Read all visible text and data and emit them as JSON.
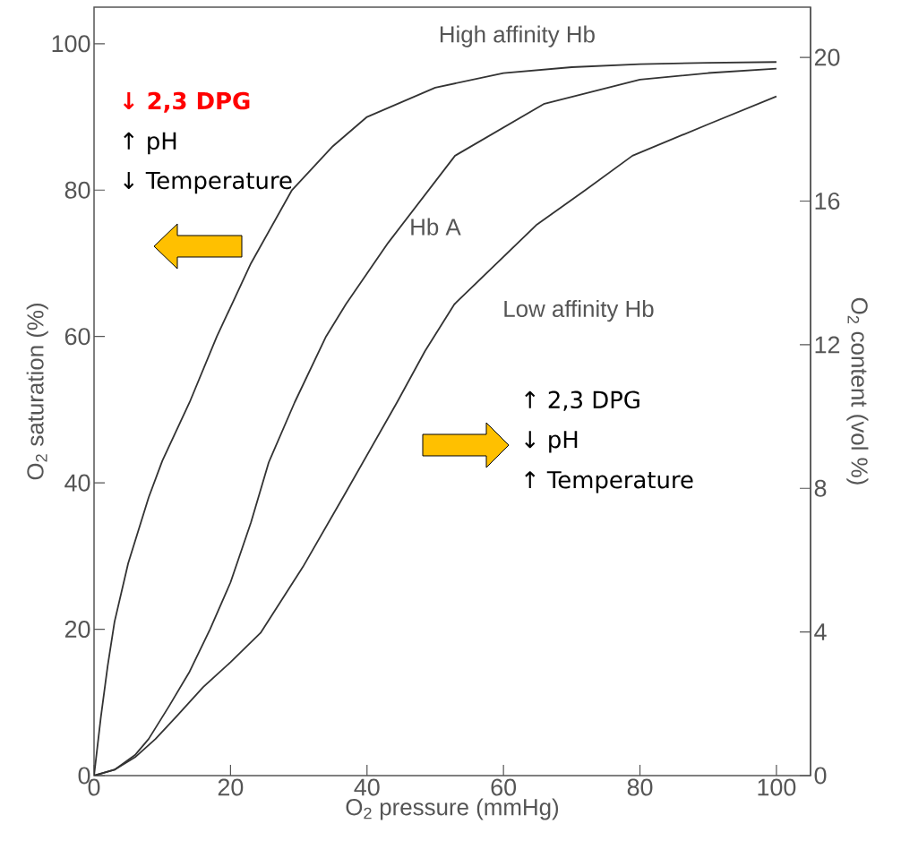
{
  "chart_data": {
    "type": "line",
    "xlabel": "O$_{2}$ pressure (mmHg)",
    "ylabel": "O$_{2}$ saturation (%)",
    "y2label": "O$_{2}$ content (vol %)",
    "xlim": [
      0,
      105
    ],
    "ylim": [
      0,
      105
    ],
    "y2lim": [
      0,
      21.4
    ],
    "xticks": [
      0,
      20,
      40,
      60,
      80,
      100
    ],
    "yticks": [
      0,
      20,
      40,
      60,
      80,
      100
    ],
    "y2ticks": [
      0,
      4,
      8,
      12,
      16,
      20
    ],
    "series": [
      {
        "name": "High affinity Hb",
        "color": "#333333",
        "x": [
          0,
          1,
          2,
          3,
          5,
          8,
          10,
          14,
          18,
          23,
          29,
          35,
          40,
          50,
          60,
          70,
          80,
          90,
          100
        ],
        "values": [
          0,
          8,
          15,
          21,
          29,
          38,
          43,
          51,
          60,
          70,
          80,
          86,
          90,
          94,
          96,
          96.8,
          97.2,
          97.4,
          97.5
        ]
      },
      {
        "name": "Hb A",
        "color": "#333333",
        "x": [
          0,
          3,
          6,
          8,
          11,
          14,
          17,
          20,
          23,
          25.6,
          29.4,
          34,
          36.9,
          43.1,
          52.9,
          66,
          80,
          90,
          100
        ],
        "values": [
          0,
          0.8,
          2.8,
          5,
          9.5,
          14.2,
          20,
          26.4,
          34.6,
          42.8,
          51,
          60,
          64.4,
          72.8,
          84.7,
          91.8,
          95.1,
          96,
          96.6
        ]
      },
      {
        "name": "Low affinity Hb",
        "color": "#333333",
        "x": [
          0,
          3,
          6,
          9,
          12,
          16,
          20,
          24.4,
          30.6,
          36.9,
          44.4,
          48.5,
          52.8,
          64.9,
          72,
          78.9,
          90,
          100
        ],
        "values": [
          0,
          0.8,
          2.5,
          5,
          8,
          12.1,
          15.5,
          19.5,
          28.5,
          38.7,
          51,
          58,
          64.4,
          75.3,
          80,
          84.7,
          89,
          92.8
        ]
      }
    ],
    "annotations": [
      "↓ 2,3 DPG",
      "↑ pH",
      "↓ Temperature",
      "↑ 2,3 DPG",
      "↓ pH",
      "↑ Temperature"
    ]
  }
}
